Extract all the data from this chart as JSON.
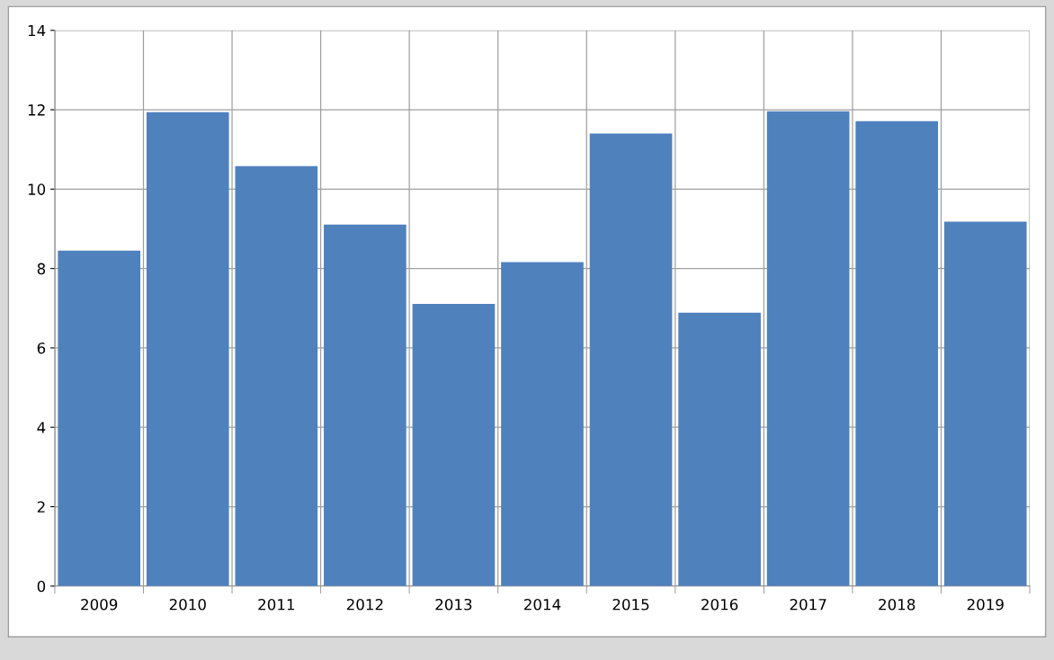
{
  "chart_data": {
    "type": "bar",
    "categories": [
      "2009",
      "2010",
      "2011",
      "2012",
      "2013",
      "2014",
      "2015",
      "2016",
      "2017",
      "2018",
      "2019"
    ],
    "values": [
      8.45,
      11.94,
      10.58,
      9.11,
      7.11,
      8.16,
      11.4,
      6.89,
      11.96,
      11.71,
      9.18
    ],
    "color": "#4f81bd",
    "ylim": [
      0,
      14
    ],
    "yticks": [
      0,
      2,
      4,
      6,
      8,
      10,
      12,
      14
    ],
    "grid": true,
    "legend": false
  }
}
